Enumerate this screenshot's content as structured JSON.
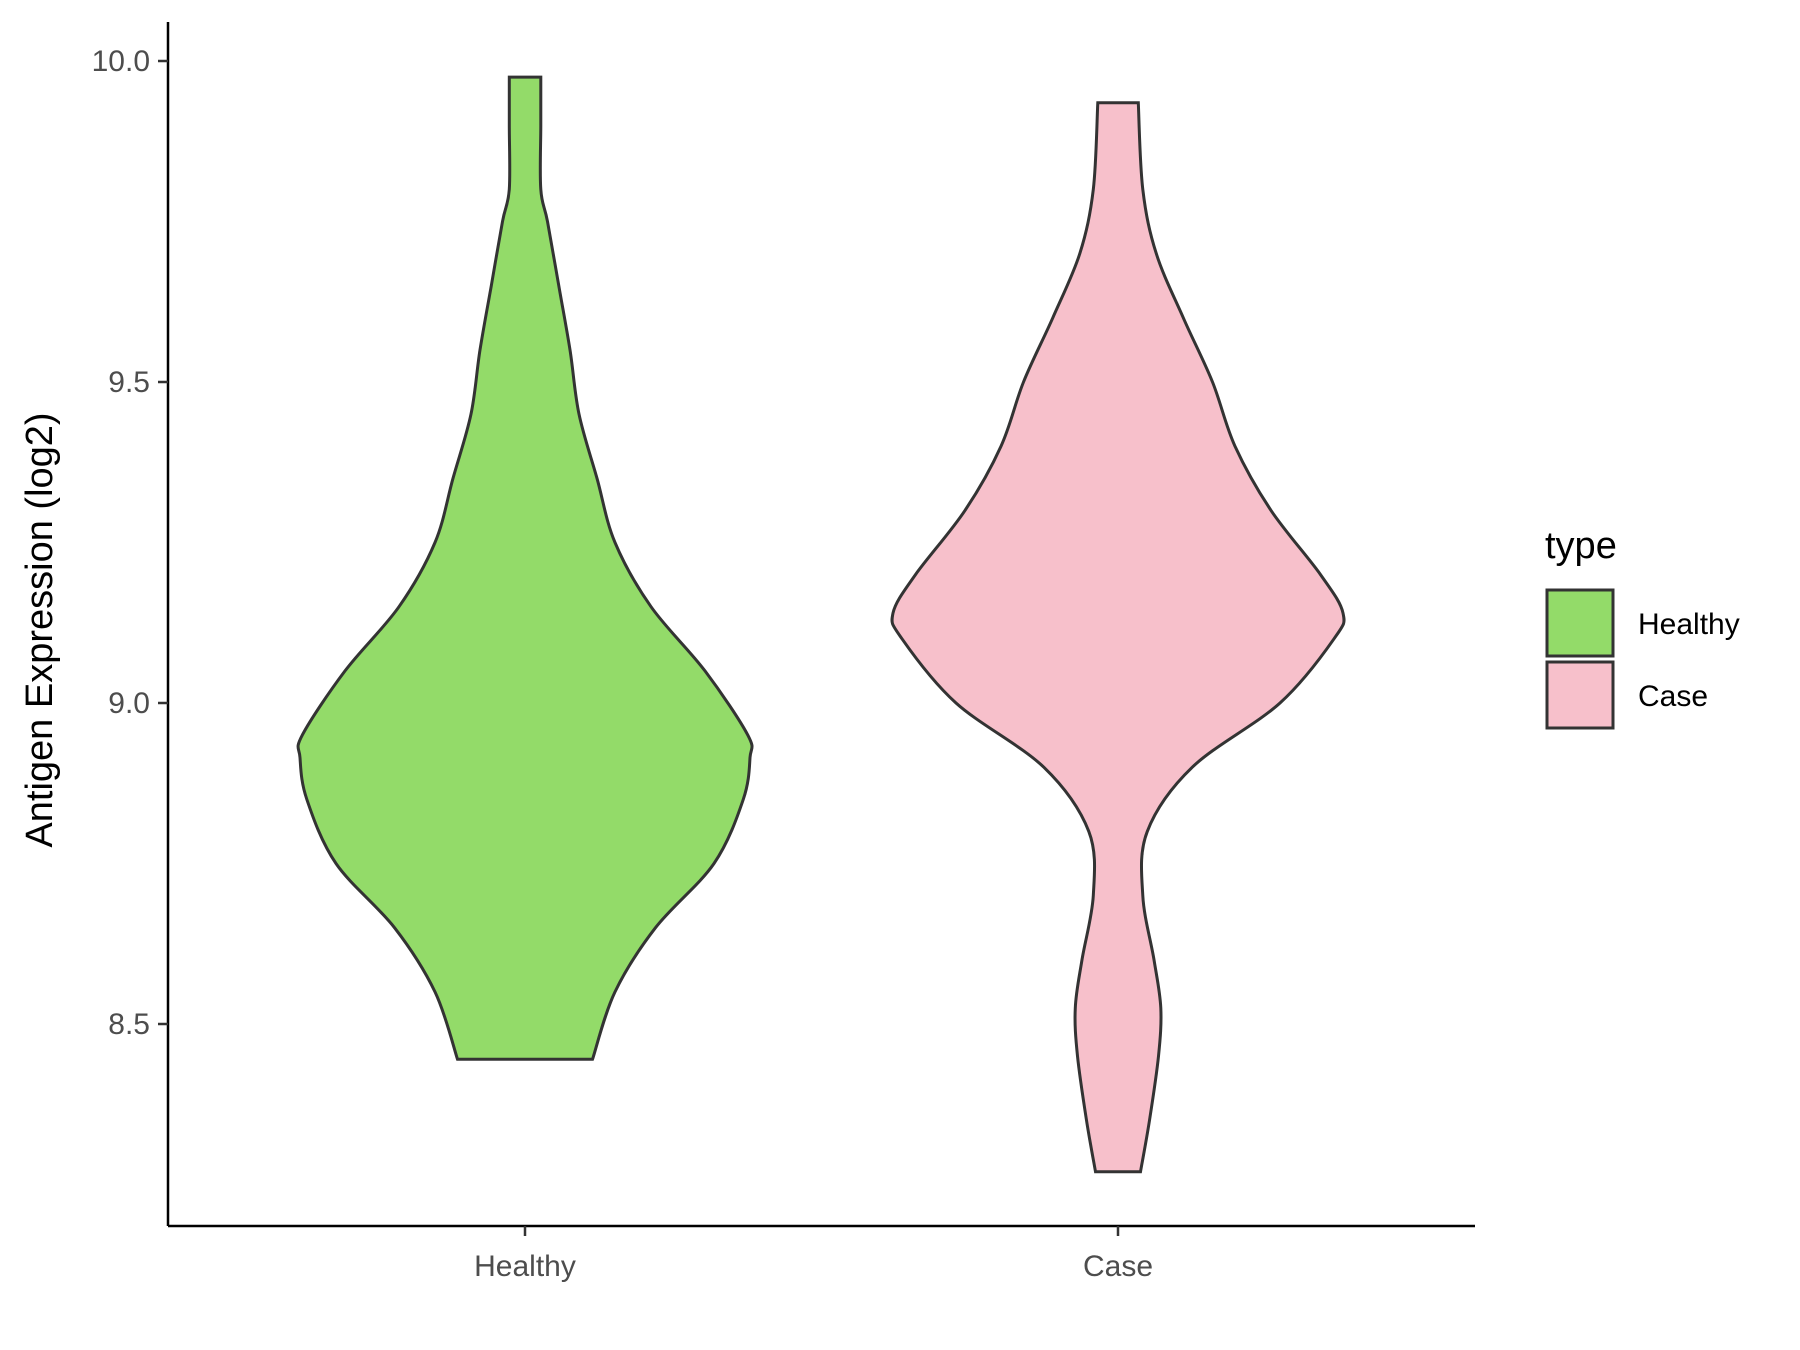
{
  "chart_data": {
    "type": "violin",
    "title": "",
    "xlabel": "",
    "ylabel": "Antigen Expression (log2)",
    "ylim": [
      8.22,
      10.06
    ],
    "yticks": [
      "8.5",
      "9.0",
      "9.5",
      "10.0"
    ],
    "categories": [
      "Healthy",
      "Case"
    ],
    "grid": false,
    "legend": {
      "title": "type",
      "placement": "right",
      "entries": [
        "Healthy",
        "Case"
      ]
    },
    "colors": {
      "Healthy": "#93DB69",
      "Case": "#F7C0CB"
    },
    "series": [
      {
        "name": "Healthy",
        "min": 8.445,
        "max": 9.975,
        "density": [
          [
            8.445,
            0.3
          ],
          [
            8.55,
            0.4
          ],
          [
            8.65,
            0.58
          ],
          [
            8.75,
            0.84
          ],
          [
            8.85,
            0.97
          ],
          [
            8.915,
            1.0
          ],
          [
            8.95,
            0.99
          ],
          [
            9.05,
            0.8
          ],
          [
            9.15,
            0.56
          ],
          [
            9.25,
            0.4
          ],
          [
            9.35,
            0.32
          ],
          [
            9.45,
            0.24
          ],
          [
            9.55,
            0.2
          ],
          [
            9.65,
            0.15
          ],
          [
            9.75,
            0.1
          ],
          [
            9.8,
            0.07
          ],
          [
            9.9,
            0.07
          ],
          [
            9.975,
            0.07
          ]
        ]
      },
      {
        "name": "Case",
        "min": 8.27,
        "max": 9.935,
        "density": [
          [
            8.27,
            0.1
          ],
          [
            8.35,
            0.14
          ],
          [
            8.45,
            0.18
          ],
          [
            8.525,
            0.19
          ],
          [
            8.6,
            0.16
          ],
          [
            8.7,
            0.11
          ],
          [
            8.8,
            0.13
          ],
          [
            8.9,
            0.33
          ],
          [
            9.0,
            0.72
          ],
          [
            9.1,
            0.96
          ],
          [
            9.14,
            1.0
          ],
          [
            9.2,
            0.9
          ],
          [
            9.3,
            0.68
          ],
          [
            9.4,
            0.52
          ],
          [
            9.5,
            0.42
          ],
          [
            9.6,
            0.29
          ],
          [
            9.7,
            0.17
          ],
          [
            9.8,
            0.11
          ],
          [
            9.935,
            0.09
          ]
        ]
      }
    ]
  }
}
